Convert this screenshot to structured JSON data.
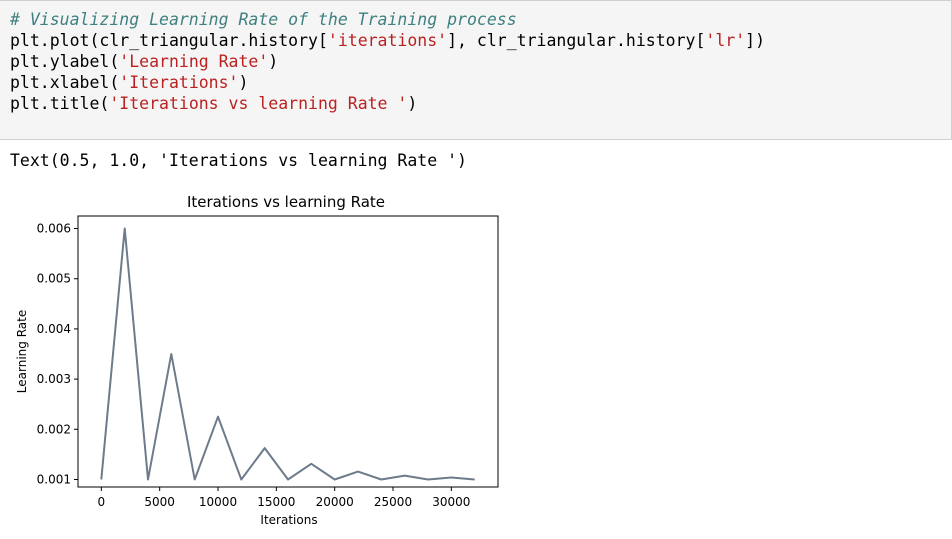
{
  "cell": {
    "code_lines": [
      {
        "parts": [
          {
            "t": "# Visualizing Learning Rate of the Training process",
            "c": "cm"
          }
        ]
      },
      {
        "parts": [
          {
            "t": "plt.plot(clr_triangular.history[",
            "c": ""
          },
          {
            "t": "'iterations'",
            "c": "st"
          },
          {
            "t": "], clr_triangular.history[",
            "c": ""
          },
          {
            "t": "'lr'",
            "c": "st"
          },
          {
            "t": "])",
            "c": ""
          }
        ]
      },
      {
        "parts": [
          {
            "t": "plt.ylabel(",
            "c": ""
          },
          {
            "t": "'Learning Rate'",
            "c": "st"
          },
          {
            "t": ")",
            "c": ""
          }
        ]
      },
      {
        "parts": [
          {
            "t": "plt.xlabel(",
            "c": ""
          },
          {
            "t": "'Iterations'",
            "c": "st"
          },
          {
            "t": ")",
            "c": ""
          }
        ]
      },
      {
        "parts": [
          {
            "t": "plt.title(",
            "c": ""
          },
          {
            "t": "'Iterations vs learning Rate '",
            "c": "st"
          },
          {
            "t": ")",
            "c": ""
          }
        ]
      }
    ],
    "output_text": "Text(0.5, 1.0, 'Iterations vs learning Rate ')"
  },
  "chart_data": {
    "type": "line",
    "title": "Iterations vs learning Rate",
    "xlabel": "Iterations",
    "ylabel": "Learning Rate",
    "xlim": [
      -2000,
      34000
    ],
    "ylim": [
      0.00085,
      0.00625
    ],
    "xticks": [
      0,
      5000,
      10000,
      15000,
      20000,
      25000,
      30000
    ],
    "yticks": [
      0.001,
      0.002,
      0.003,
      0.004,
      0.005,
      0.006
    ],
    "ytick_labels": [
      "0.001",
      "0.002",
      "0.003",
      "0.004",
      "0.005",
      "0.006"
    ],
    "line_color": "#6e7b8b",
    "grid": false,
    "series": [
      {
        "x": [
          0,
          2000,
          4000,
          6000,
          8000,
          10000,
          12000,
          14000,
          16000,
          18000,
          20000,
          22000,
          24000,
          26000,
          28000,
          30000,
          32000
        ],
        "y": [
          0.001,
          0.006,
          0.001,
          0.0035,
          0.001,
          0.00225,
          0.001,
          0.001625,
          0.001,
          0.0013125,
          0.001,
          0.00115625,
          0.001,
          0.00107813,
          0.001,
          0.00103906,
          0.001
        ]
      }
    ]
  },
  "colors": {
    "comment": "#408080",
    "string": "#ba2121",
    "cell_bg": "#f5f5f5"
  }
}
